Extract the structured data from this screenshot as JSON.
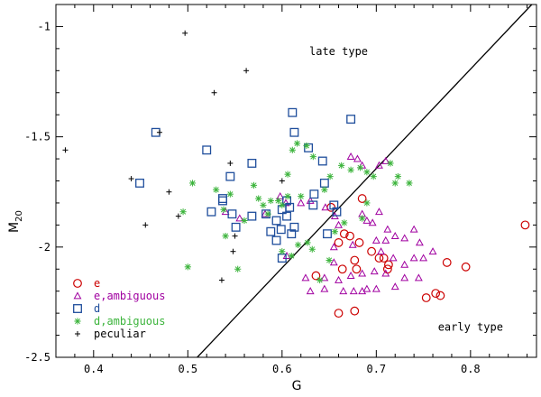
{
  "chart_data": {
    "type": "scatter",
    "title": "",
    "xlabel": "G",
    "ylabel_main": "M",
    "ylabel_sub": "20",
    "xlim": [
      0.36,
      0.87
    ],
    "ylim": [
      -2.5,
      -0.9
    ],
    "y_inverted": true,
    "xticks": [
      0.4,
      0.5,
      0.6,
      0.7,
      0.8
    ],
    "xtick_labels": [
      "0.4",
      "0.5",
      "0.6",
      "0.7",
      "0.8"
    ],
    "yticks": [
      -1,
      -1.5,
      -2,
      -2.5
    ],
    "ytick_labels": [
      "-1",
      "-1.5",
      "-2",
      "-2.5"
    ],
    "grid": false,
    "legend_placement": "bottom-left",
    "annotations": [
      {
        "text": "late type",
        "x": 0.66,
        "y": -1.13
      },
      {
        "text": "early type",
        "x": 0.8,
        "y": -2.38
      }
    ],
    "boundary_line": {
      "x": [
        0.51,
        0.865
      ],
      "y": [
        -2.5,
        -0.9
      ]
    },
    "series": [
      {
        "name": "e",
        "marker": "circle",
        "color": "#cc0000",
        "points": [
          [
            0.858,
            -1.9
          ],
          [
            0.652,
            -1.82
          ],
          [
            0.672,
            -1.95
          ],
          [
            0.66,
            -1.98
          ],
          [
            0.682,
            -1.98
          ],
          [
            0.695,
            -2.02
          ],
          [
            0.677,
            -2.06
          ],
          [
            0.664,
            -2.1
          ],
          [
            0.679,
            -2.1
          ],
          [
            0.703,
            -2.05
          ],
          [
            0.708,
            -2.05
          ],
          [
            0.713,
            -2.08
          ],
          [
            0.712,
            -2.1
          ],
          [
            0.636,
            -2.13
          ],
          [
            0.775,
            -2.07
          ],
          [
            0.795,
            -2.09
          ],
          [
            0.753,
            -2.23
          ],
          [
            0.763,
            -2.21
          ],
          [
            0.768,
            -2.22
          ],
          [
            0.66,
            -2.3
          ],
          [
            0.677,
            -2.29
          ],
          [
            0.685,
            -1.78
          ],
          [
            0.666,
            -1.94
          ]
        ]
      },
      {
        "name": "e,ambiguous",
        "marker": "triangle",
        "color": "#a000a0",
        "points": [
          [
            0.598,
            -1.77
          ],
          [
            0.604,
            -1.8
          ],
          [
            0.673,
            -1.59
          ],
          [
            0.68,
            -1.6
          ],
          [
            0.685,
            -1.63
          ],
          [
            0.703,
            -1.63
          ],
          [
            0.71,
            -1.61
          ],
          [
            0.62,
            -1.8
          ],
          [
            0.63,
            -1.79
          ],
          [
            0.646,
            -1.82
          ],
          [
            0.656,
            -1.86
          ],
          [
            0.66,
            -1.9
          ],
          [
            0.685,
            -1.85
          ],
          [
            0.69,
            -1.88
          ],
          [
            0.696,
            -1.89
          ],
          [
            0.703,
            -1.84
          ],
          [
            0.712,
            -1.92
          ],
          [
            0.71,
            -1.97
          ],
          [
            0.72,
            -1.95
          ],
          [
            0.73,
            -1.96
          ],
          [
            0.74,
            -1.92
          ],
          [
            0.746,
            -1.98
          ],
          [
            0.7,
            -1.97
          ],
          [
            0.705,
            -2.02
          ],
          [
            0.718,
            -2.05
          ],
          [
            0.73,
            -2.08
          ],
          [
            0.74,
            -2.05
          ],
          [
            0.75,
            -2.05
          ],
          [
            0.76,
            -2.02
          ],
          [
            0.73,
            -2.14
          ],
          [
            0.745,
            -2.14
          ],
          [
            0.655,
            -2.07
          ],
          [
            0.645,
            -2.14
          ],
          [
            0.66,
            -2.15
          ],
          [
            0.685,
            -2.12
          ],
          [
            0.698,
            -2.11
          ],
          [
            0.69,
            -2.19
          ],
          [
            0.7,
            -2.19
          ],
          [
            0.676,
            -2.2
          ],
          [
            0.685,
            -2.2
          ],
          [
            0.665,
            -2.2
          ],
          [
            0.645,
            -2.19
          ],
          [
            0.63,
            -2.2
          ],
          [
            0.625,
            -2.14
          ],
          [
            0.71,
            -2.12
          ],
          [
            0.72,
            -2.18
          ],
          [
            0.605,
            -2.04
          ],
          [
            0.555,
            -1.87
          ],
          [
            0.54,
            -1.84
          ],
          [
            0.582,
            -1.85
          ],
          [
            0.673,
            -2.13
          ],
          [
            0.675,
            -1.99
          ],
          [
            0.655,
            -2.0
          ]
        ]
      },
      {
        "name": "d",
        "marker": "square",
        "color": "#1f4e9c",
        "points": [
          [
            0.466,
            -1.48
          ],
          [
            0.449,
            -1.71
          ],
          [
            0.52,
            -1.56
          ],
          [
            0.545,
            -1.68
          ],
          [
            0.537,
            -1.79
          ],
          [
            0.537,
            -1.78
          ],
          [
            0.525,
            -1.84
          ],
          [
            0.547,
            -1.85
          ],
          [
            0.551,
            -1.91
          ],
          [
            0.568,
            -1.62
          ],
          [
            0.568,
            -1.86
          ],
          [
            0.583,
            -1.85
          ],
          [
            0.588,
            -1.93
          ],
          [
            0.594,
            -1.88
          ],
          [
            0.594,
            -1.97
          ],
          [
            0.605,
            -1.79
          ],
          [
            0.608,
            -1.82
          ],
          [
            0.613,
            -1.48
          ],
          [
            0.611,
            -1.39
          ],
          [
            0.628,
            -1.55
          ],
          [
            0.634,
            -1.76
          ],
          [
            0.633,
            -1.81
          ],
          [
            0.643,
            -1.61
          ],
          [
            0.645,
            -1.71
          ],
          [
            0.655,
            -1.81
          ],
          [
            0.658,
            -1.84
          ],
          [
            0.648,
            -1.94
          ],
          [
            0.605,
            -1.86
          ],
          [
            0.613,
            -1.91
          ],
          [
            0.599,
            -1.92
          ],
          [
            0.6,
            -2.05
          ],
          [
            0.673,
            -1.42
          ],
          [
            0.61,
            -1.94
          ],
          [
            0.6,
            -1.83
          ]
        ]
      },
      {
        "name": "d,ambiguous",
        "marker": "asterisk",
        "color": "#3cb43c",
        "points": [
          [
            0.505,
            -1.71
          ],
          [
            0.53,
            -1.74
          ],
          [
            0.538,
            -1.83
          ],
          [
            0.545,
            -1.76
          ],
          [
            0.57,
            -1.72
          ],
          [
            0.575,
            -1.78
          ],
          [
            0.58,
            -1.81
          ],
          [
            0.585,
            -1.85
          ],
          [
            0.56,
            -1.88
          ],
          [
            0.54,
            -1.95
          ],
          [
            0.553,
            -2.1
          ],
          [
            0.5,
            -2.09
          ],
          [
            0.495,
            -1.84
          ],
          [
            0.588,
            -1.79
          ],
          [
            0.596,
            -1.79
          ],
          [
            0.6,
            -1.81
          ],
          [
            0.606,
            -1.67
          ],
          [
            0.611,
            -1.56
          ],
          [
            0.616,
            -1.53
          ],
          [
            0.626,
            -1.54
          ],
          [
            0.633,
            -1.59
          ],
          [
            0.645,
            -1.74
          ],
          [
            0.651,
            -1.68
          ],
          [
            0.663,
            -1.63
          ],
          [
            0.673,
            -1.65
          ],
          [
            0.683,
            -1.64
          ],
          [
            0.69,
            -1.66
          ],
          [
            0.697,
            -1.68
          ],
          [
            0.715,
            -1.62
          ],
          [
            0.723,
            -1.68
          ],
          [
            0.735,
            -1.71
          ],
          [
            0.72,
            -1.71
          ],
          [
            0.61,
            -2.04
          ],
          [
            0.6,
            -2.02
          ],
          [
            0.617,
            -1.99
          ],
          [
            0.627,
            -1.98
          ],
          [
            0.632,
            -2.01
          ],
          [
            0.64,
            -2.15
          ],
          [
            0.65,
            -2.06
          ],
          [
            0.606,
            -1.77
          ],
          [
            0.62,
            -1.77
          ],
          [
            0.685,
            -1.87
          ],
          [
            0.656,
            -1.93
          ],
          [
            0.666,
            -1.89
          ],
          [
            0.69,
            -1.8
          ]
        ]
      },
      {
        "name": "peculiar",
        "marker": "plus",
        "color": "#000000",
        "points": [
          [
            0.497,
            -1.03
          ],
          [
            0.562,
            -1.2
          ],
          [
            0.528,
            -1.3
          ],
          [
            0.47,
            -1.48
          ],
          [
            0.37,
            -1.56
          ],
          [
            0.545,
            -1.62
          ],
          [
            0.44,
            -1.69
          ],
          [
            0.48,
            -1.75
          ],
          [
            0.49,
            -1.86
          ],
          [
            0.455,
            -1.9
          ],
          [
            0.548,
            -2.02
          ],
          [
            0.536,
            -2.15
          ],
          [
            0.6,
            -1.7
          ],
          [
            0.55,
            -1.95
          ]
        ]
      }
    ]
  }
}
